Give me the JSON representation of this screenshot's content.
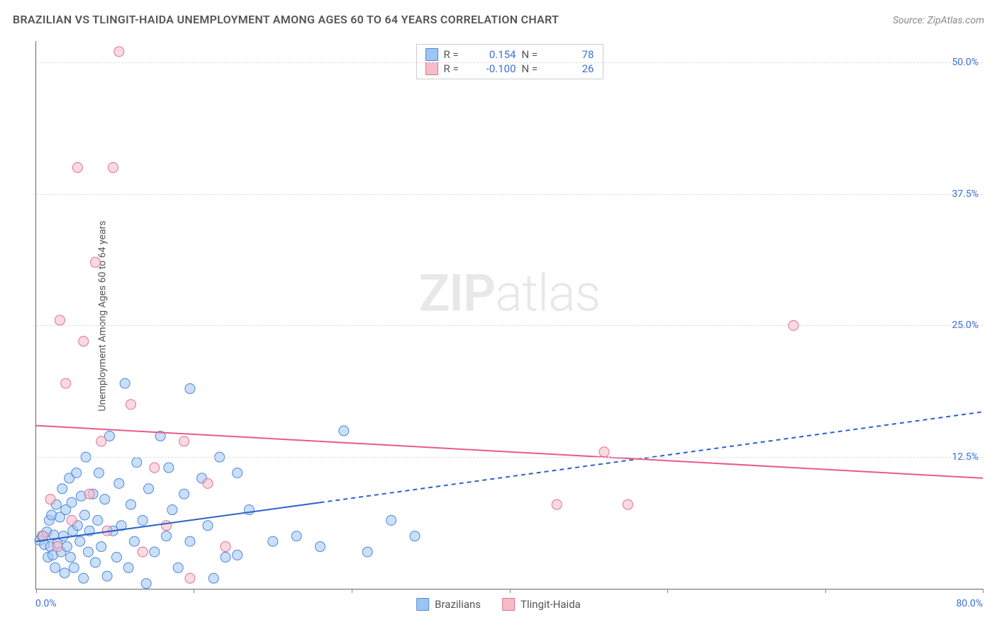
{
  "title": "BRAZILIAN VS TLINGIT-HAIDA UNEMPLOYMENT AMONG AGES 60 TO 64 YEARS CORRELATION CHART",
  "source": "Source: ZipAtlas.com",
  "y_axis_label": "Unemployment Among Ages 60 to 64 years",
  "watermark_bold": "ZIP",
  "watermark_light": "atlas",
  "chart": {
    "type": "scatter-correlation",
    "x_min": 0.0,
    "x_max": 80.0,
    "y_min": 0.0,
    "y_max": 52.0,
    "x_tick_labels": {
      "min": "0.0%",
      "max": "80.0%"
    },
    "y_ticks": [
      {
        "v": 12.5,
        "label": "12.5%"
      },
      {
        "v": 25.0,
        "label": "25.0%"
      },
      {
        "v": 37.5,
        "label": "37.5%"
      },
      {
        "v": 50.0,
        "label": "50.0%"
      }
    ],
    "x_ticks_minor": [
      0,
      13.33,
      26.67,
      40.0,
      53.33,
      66.67,
      80.0
    ],
    "grid_color": "#dddddd",
    "background": "#ffffff",
    "axis_color": "#666666",
    "tick_label_color": "#3b6fd6",
    "marker_radius": 7,
    "marker_opacity": 0.55,
    "series": [
      {
        "name": "Brazilians",
        "color_fill": "#9ec4f5",
        "color_stroke": "#4f87d6",
        "R": "0.154",
        "N": "78",
        "trend": {
          "y_at_xmin": 4.5,
          "y_at_xmax": 16.8,
          "x_solid_until": 24.0,
          "stroke": "#2b62c9",
          "width": 2
        },
        "points": [
          [
            0.3,
            4.6
          ],
          [
            0.5,
            5.0
          ],
          [
            0.7,
            4.2
          ],
          [
            0.9,
            5.4
          ],
          [
            1.0,
            3.0
          ],
          [
            1.1,
            6.5
          ],
          [
            1.2,
            4.0
          ],
          [
            1.3,
            7.0
          ],
          [
            1.4,
            3.2
          ],
          [
            1.5,
            5.1
          ],
          [
            1.6,
            2.0
          ],
          [
            1.7,
            8.0
          ],
          [
            1.8,
            4.3
          ],
          [
            2.0,
            6.8
          ],
          [
            2.1,
            3.5
          ],
          [
            2.2,
            9.5
          ],
          [
            2.3,
            5.0
          ],
          [
            2.4,
            1.5
          ],
          [
            2.5,
            7.5
          ],
          [
            2.6,
            4.0
          ],
          [
            2.8,
            10.5
          ],
          [
            2.9,
            3.0
          ],
          [
            3.0,
            8.2
          ],
          [
            3.1,
            5.5
          ],
          [
            3.2,
            2.0
          ],
          [
            3.4,
            11.0
          ],
          [
            3.5,
            6.0
          ],
          [
            3.7,
            4.5
          ],
          [
            3.8,
            8.8
          ],
          [
            4.0,
            1.0
          ],
          [
            4.1,
            7.0
          ],
          [
            4.2,
            12.5
          ],
          [
            4.4,
            3.5
          ],
          [
            4.5,
            5.5
          ],
          [
            4.8,
            9.0
          ],
          [
            5.0,
            2.5
          ],
          [
            5.2,
            6.5
          ],
          [
            5.3,
            11.0
          ],
          [
            5.5,
            4.0
          ],
          [
            5.8,
            8.5
          ],
          [
            6.0,
            1.2
          ],
          [
            6.2,
            14.5
          ],
          [
            6.5,
            5.5
          ],
          [
            6.8,
            3.0
          ],
          [
            7.0,
            10.0
          ],
          [
            7.2,
            6.0
          ],
          [
            7.5,
            19.5
          ],
          [
            7.8,
            2.0
          ],
          [
            8.0,
            8.0
          ],
          [
            8.3,
            4.5
          ],
          [
            8.5,
            12.0
          ],
          [
            9.0,
            6.5
          ],
          [
            9.3,
            0.5
          ],
          [
            9.5,
            9.5
          ],
          [
            10.0,
            3.5
          ],
          [
            10.5,
            14.5
          ],
          [
            11.0,
            5.0
          ],
          [
            11.2,
            11.5
          ],
          [
            11.5,
            7.5
          ],
          [
            12.0,
            2.0
          ],
          [
            12.5,
            9.0
          ],
          [
            13.0,
            19.0
          ],
          [
            13.0,
            4.5
          ],
          [
            14.0,
            10.5
          ],
          [
            14.5,
            6.0
          ],
          [
            15.0,
            1.0
          ],
          [
            15.5,
            12.5
          ],
          [
            16.0,
            3.0
          ],
          [
            17.0,
            11.0
          ],
          [
            17.0,
            3.2
          ],
          [
            18.0,
            7.5
          ],
          [
            20.0,
            4.5
          ],
          [
            22.0,
            5.0
          ],
          [
            24.0,
            4.0
          ],
          [
            26.0,
            15.0
          ],
          [
            28.0,
            3.5
          ],
          [
            30.0,
            6.5
          ],
          [
            32.0,
            5.0
          ]
        ]
      },
      {
        "name": "Tlingit-Haida",
        "color_fill": "#f6bcc9",
        "color_stroke": "#e16f94",
        "R": "-0.100",
        "N": "26",
        "trend": {
          "y_at_xmin": 15.5,
          "y_at_xmax": 10.5,
          "x_solid_until": 80.0,
          "stroke": "#e85a8a",
          "width": 2
        },
        "points": [
          [
            0.6,
            5.0
          ],
          [
            1.2,
            8.5
          ],
          [
            1.8,
            4.0
          ],
          [
            2.0,
            25.5
          ],
          [
            2.5,
            19.5
          ],
          [
            3.0,
            6.5
          ],
          [
            3.5,
            40.0
          ],
          [
            4.0,
            23.5
          ],
          [
            4.5,
            9.0
          ],
          [
            5.0,
            31.0
          ],
          [
            5.5,
            14.0
          ],
          [
            6.0,
            5.5
          ],
          [
            6.5,
            40.0
          ],
          [
            7.0,
            51.0
          ],
          [
            8.0,
            17.5
          ],
          [
            9.0,
            3.5
          ],
          [
            10.0,
            11.5
          ],
          [
            11.0,
            6.0
          ],
          [
            12.5,
            14.0
          ],
          [
            13.0,
            1.0
          ],
          [
            14.5,
            10.0
          ],
          [
            16.0,
            4.0
          ],
          [
            44.0,
            8.0
          ],
          [
            48.0,
            13.0
          ],
          [
            50.0,
            8.0
          ],
          [
            64.0,
            25.0
          ]
        ]
      }
    ]
  },
  "legend_top": {
    "r_label": "R =",
    "n_label": "N ="
  },
  "legend_bottom": [
    {
      "label": "Brazilians",
      "fill": "#9ec4f5",
      "stroke": "#4f87d6"
    },
    {
      "label": "Tlingit-Haida",
      "fill": "#f6bcc9",
      "stroke": "#e16f94"
    }
  ]
}
